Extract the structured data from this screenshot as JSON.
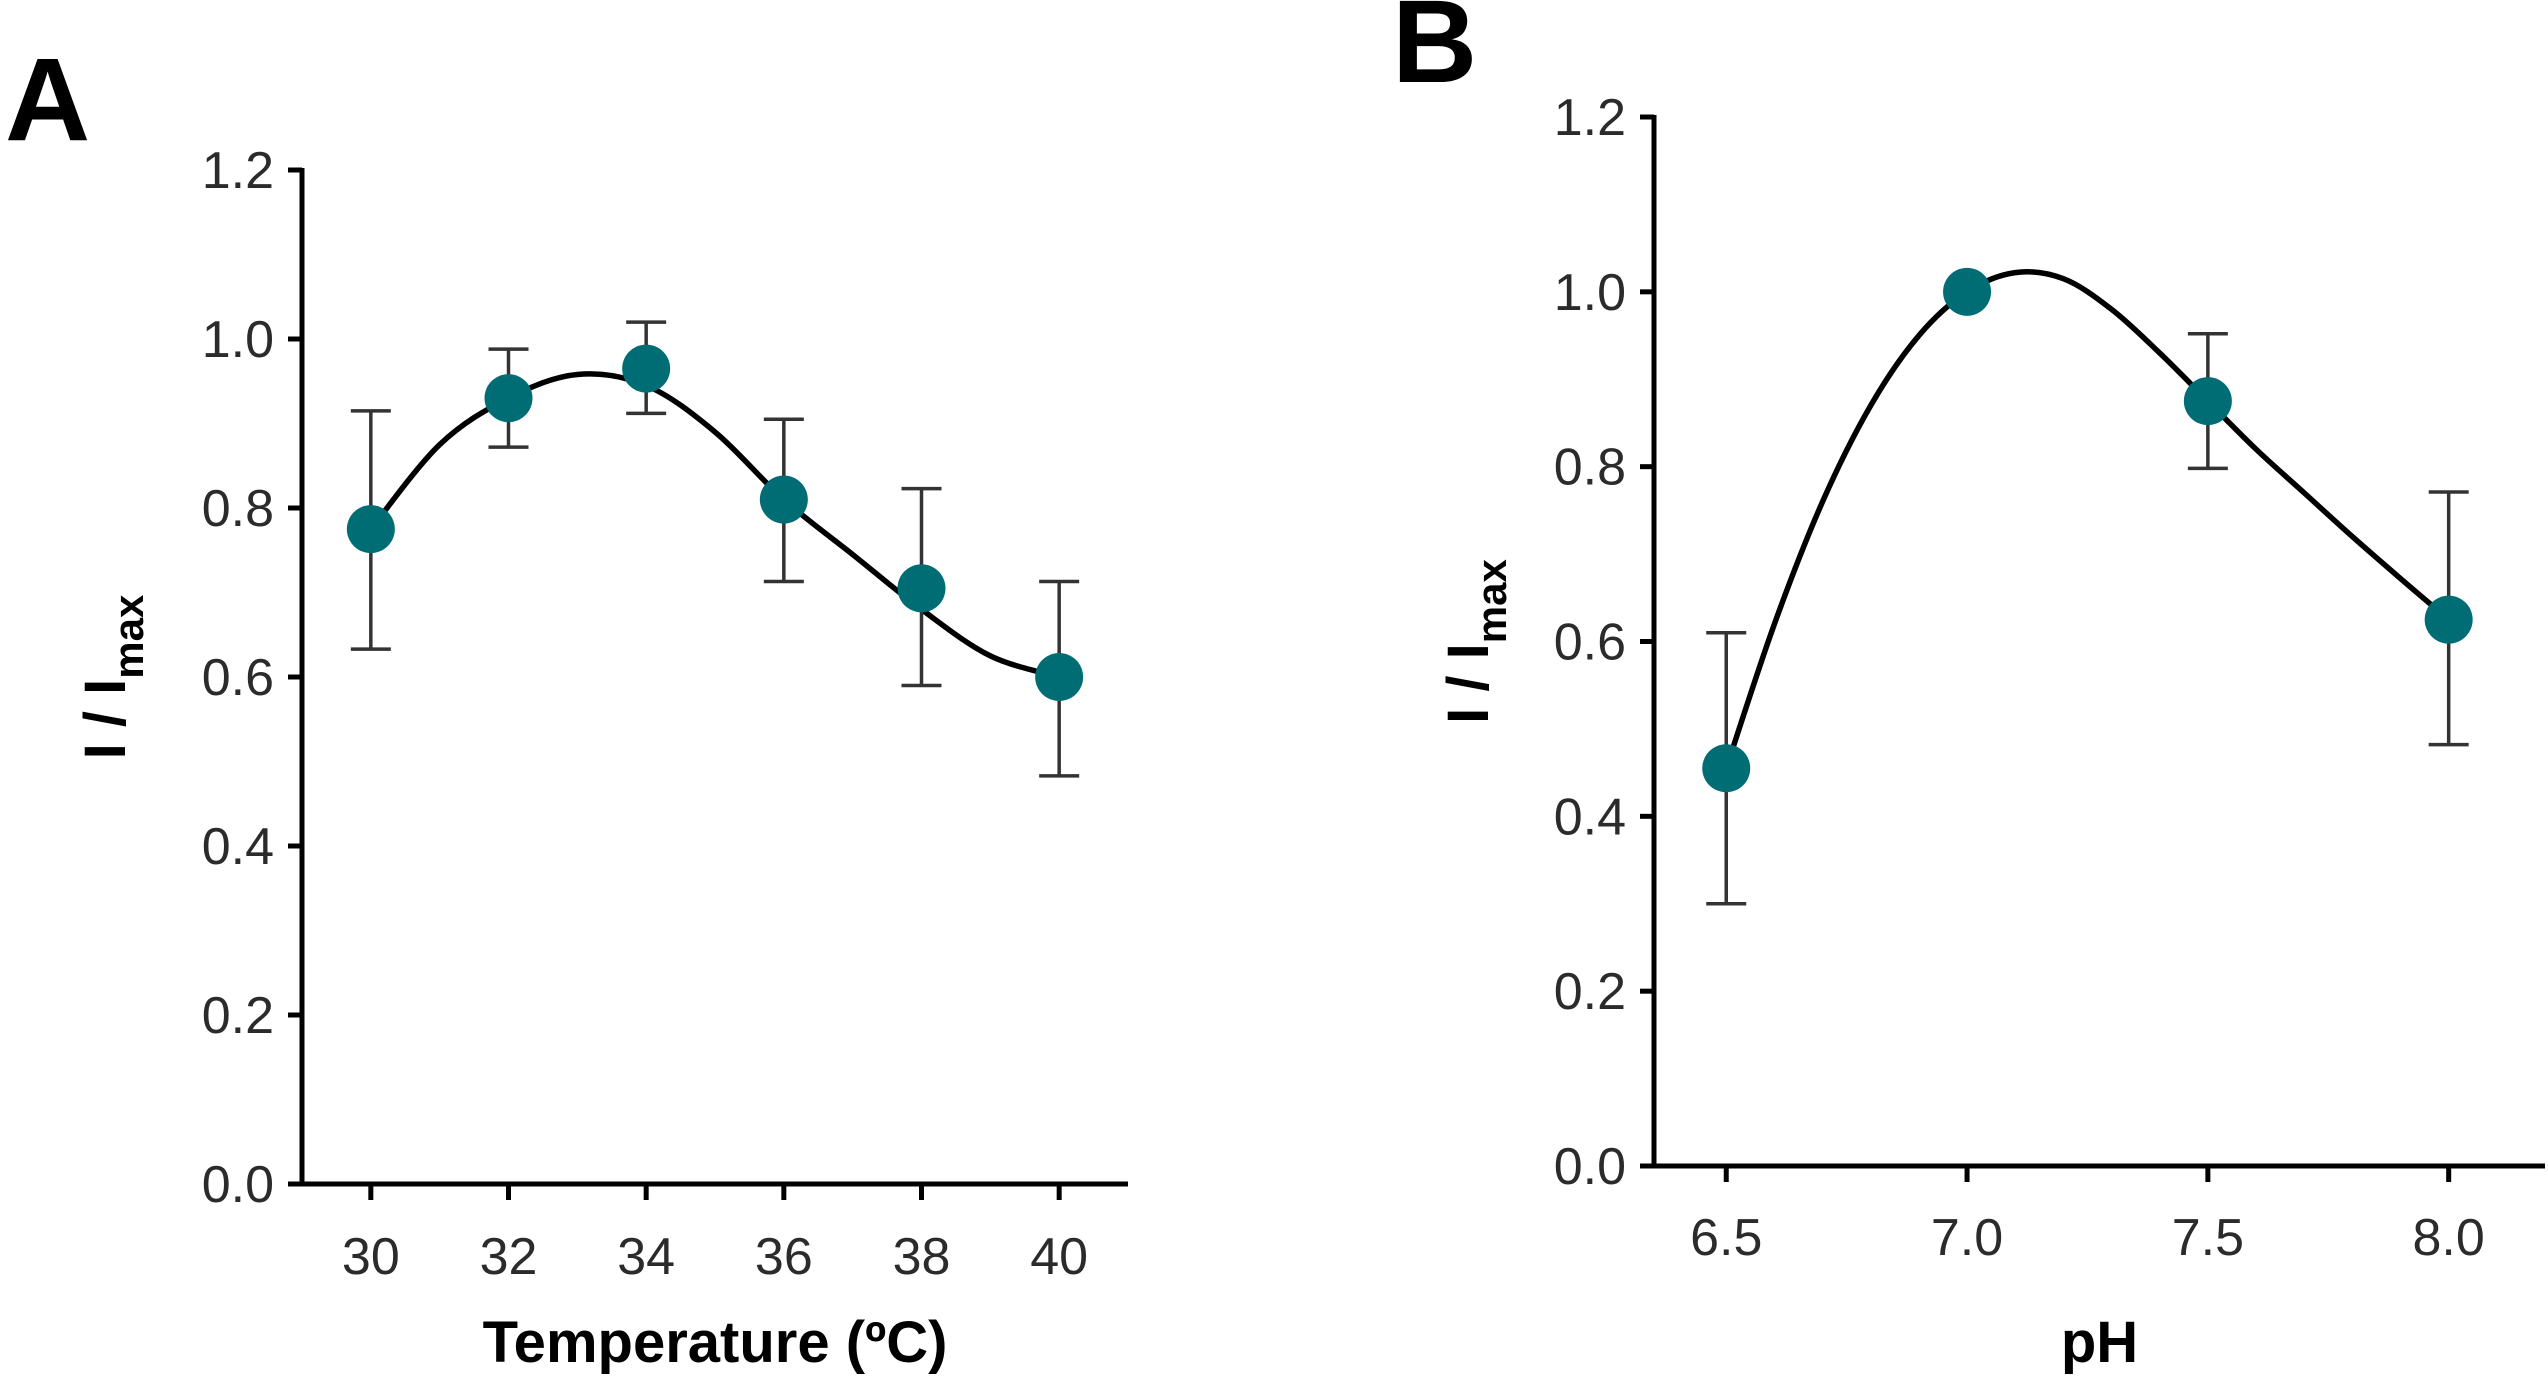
{
  "chart_data": [
    {
      "panel_label": "A",
      "type": "scatter",
      "fit_curve": "smooth",
      "x": [
        30,
        32,
        34,
        36,
        38,
        40
      ],
      "x_ticks": [
        "30",
        "32",
        "34",
        "36",
        "38",
        "40"
      ],
      "y": [
        0.775,
        0.93,
        0.965,
        0.81,
        0.705,
        0.6
      ],
      "y_err_upper": [
        0.915,
        0.988,
        1.02,
        0.905,
        0.823,
        0.713
      ],
      "y_err_lower": [
        0.633,
        0.872,
        0.912,
        0.713,
        0.59,
        0.483
      ],
      "curve": [
        [
          30,
          0.775
        ],
        [
          31,
          0.875
        ],
        [
          32,
          0.93
        ],
        [
          33,
          0.958
        ],
        [
          34,
          0.945
        ],
        [
          35,
          0.89
        ],
        [
          36,
          0.81
        ],
        [
          37,
          0.745
        ],
        [
          38,
          0.68
        ],
        [
          39,
          0.625
        ],
        [
          40,
          0.6
        ]
      ],
      "xlabel": "Temperature (ºC)",
      "ylabel": "I / Imax",
      "ylabel_main": "I / I",
      "ylabel_sub": "max",
      "xlim": [
        29,
        41
      ],
      "ylim": [
        0,
        1.2
      ],
      "y_ticks": [
        "0.0",
        "0.2",
        "0.4",
        "0.6",
        "0.8",
        "1.0",
        "1.2"
      ],
      "marker_color": "#006d75"
    },
    {
      "panel_label": "B",
      "type": "scatter",
      "fit_curve": "smooth",
      "x": [
        6.5,
        7.0,
        7.5,
        8.0
      ],
      "x_ticks": [
        "6.5",
        "7.0",
        "7.5",
        "8.0"
      ],
      "y": [
        0.455,
        1.0,
        0.875,
        0.625
      ],
      "y_err_upper": [
        0.61,
        1.0,
        0.952,
        0.771
      ],
      "y_err_lower": [
        0.3,
        1.0,
        0.798,
        0.482
      ],
      "curve": [
        [
          6.5,
          0.455
        ],
        [
          6.6,
          0.62
        ],
        [
          6.7,
          0.76
        ],
        [
          6.8,
          0.87
        ],
        [
          6.9,
          0.95
        ],
        [
          7.0,
          1.0
        ],
        [
          7.1,
          1.022
        ],
        [
          7.2,
          1.015
        ],
        [
          7.3,
          0.98
        ],
        [
          7.4,
          0.93
        ],
        [
          7.5,
          0.875
        ],
        [
          7.6,
          0.82
        ],
        [
          7.7,
          0.77
        ],
        [
          7.8,
          0.72
        ],
        [
          7.9,
          0.672
        ],
        [
          8.0,
          0.625
        ]
      ],
      "xlabel": "pH",
      "ylabel": "I / Imax",
      "ylabel_main": "I / I",
      "ylabel_sub": "max",
      "xlim": [
        6.35,
        8.2
      ],
      "ylim": [
        0,
        1.2
      ],
      "y_ticks": [
        "0.0",
        "0.2",
        "0.4",
        "0.6",
        "0.8",
        "1.0",
        "1.2"
      ],
      "marker_color": "#006d75"
    }
  ]
}
